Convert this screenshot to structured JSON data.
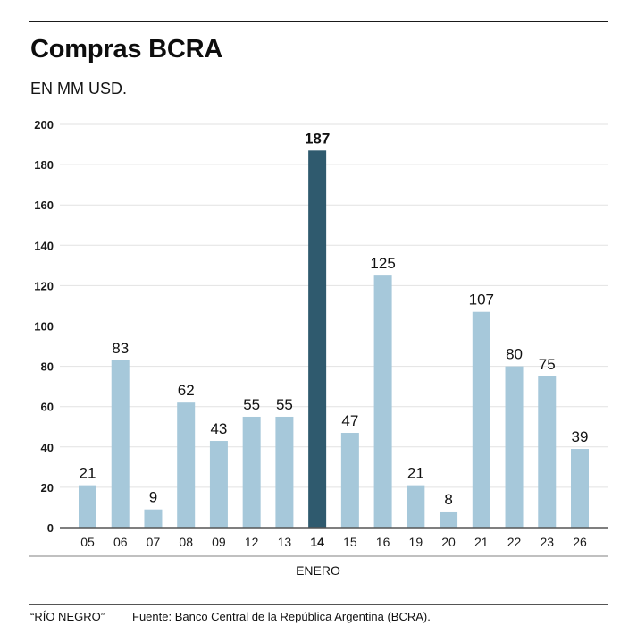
{
  "header": {
    "title": "Compras BCRA",
    "subtitle": "EN MM USD."
  },
  "footer": {
    "brand": "“RÍO NEGRO”",
    "source": "Fuente: Banco Central de la República Argentina (BCRA)."
  },
  "colors": {
    "bar": "#a6c8da",
    "bar_highlight": "#2f5a6e",
    "grid": "#e2e2e2",
    "axis": "#555555"
  },
  "chart_data": {
    "type": "bar",
    "title": "Compras BCRA",
    "subtitle": "EN MM USD.",
    "xlabel": "ENERO",
    "ylabel": "",
    "ylim": [
      0,
      200
    ],
    "yticks": [
      0,
      20,
      40,
      60,
      80,
      100,
      120,
      140,
      160,
      180,
      200
    ],
    "grid": true,
    "legend": "none",
    "categories": [
      "05",
      "06",
      "07",
      "08",
      "09",
      "12",
      "13",
      "14",
      "15",
      "16",
      "19",
      "20",
      "21",
      "22",
      "23",
      "26"
    ],
    "values": [
      21,
      83,
      9,
      62,
      43,
      55,
      55,
      187,
      47,
      125,
      21,
      8,
      107,
      80,
      75,
      39
    ],
    "highlight_category": "14"
  }
}
